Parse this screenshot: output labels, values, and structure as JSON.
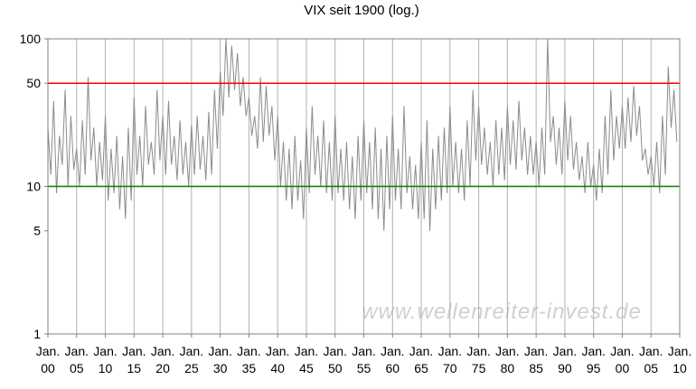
{
  "chart_data": {
    "type": "line",
    "title": "VIX seit 1900 (log.)",
    "watermark": "www.wellenreiter-invest.de",
    "log_y": true,
    "grid_x": true,
    "ylim": [
      1,
      100
    ],
    "yticks": [
      1,
      5,
      10,
      50,
      100
    ],
    "xlim": [
      1900,
      2010
    ],
    "xticks": [
      {
        "value": 1900,
        "label": "Jan. 00"
      },
      {
        "value": 1905,
        "label": "Jan. 05"
      },
      {
        "value": 1910,
        "label": "Jan. 10"
      },
      {
        "value": 1915,
        "label": "Jan. 15"
      },
      {
        "value": 1920,
        "label": "Jan. 20"
      },
      {
        "value": 1925,
        "label": "Jan. 25"
      },
      {
        "value": 1930,
        "label": "Jan. 30"
      },
      {
        "value": 1935,
        "label": "Jan. 35"
      },
      {
        "value": 1940,
        "label": "Jan. 40"
      },
      {
        "value": 1945,
        "label": "Jan. 45"
      },
      {
        "value": 1950,
        "label": "Jan. 50"
      },
      {
        "value": 1955,
        "label": "Jan. 55"
      },
      {
        "value": 1960,
        "label": "Jan. 60"
      },
      {
        "value": 1965,
        "label": "Jan. 65"
      },
      {
        "value": 1970,
        "label": "Jan. 70"
      },
      {
        "value": 1975,
        "label": "Jan. 75"
      },
      {
        "value": 1980,
        "label": "Jan. 80"
      },
      {
        "value": 1985,
        "label": "Jan. 85"
      },
      {
        "value": 1990,
        "label": "Jan. 90"
      },
      {
        "value": 1995,
        "label": "Jan. 95"
      },
      {
        "value": 2000,
        "label": "Jan. 00"
      },
      {
        "value": 2005,
        "label": "Jan. 05"
      },
      {
        "value": 2010,
        "label": "Jan. 10"
      }
    ],
    "hlines": [
      {
        "value": 50,
        "color": "#ff0000"
      },
      {
        "value": 10,
        "color": "#008000"
      }
    ],
    "x": [
      1900,
      1900.5,
      1901,
      1901.5,
      1902,
      1902.5,
      1903,
      1903.5,
      1904,
      1904.5,
      1905,
      1905.5,
      1906,
      1906.5,
      1907,
      1907.5,
      1908,
      1908.5,
      1909,
      1909.5,
      1910,
      1910.5,
      1911,
      1911.5,
      1912,
      1912.5,
      1913,
      1913.5,
      1914,
      1914.5,
      1915,
      1915.5,
      1916,
      1916.5,
      1917,
      1917.5,
      1918,
      1918.5,
      1919,
      1919.5,
      1920,
      1920.5,
      1921,
      1921.5,
      1922,
      1922.5,
      1923,
      1923.5,
      1924,
      1924.5,
      1925,
      1925.5,
      1926,
      1926.5,
      1927,
      1927.5,
      1928,
      1928.5,
      1929,
      1929.5,
      1930,
      1930.5,
      1931,
      1931.5,
      1932,
      1932.5,
      1933,
      1933.5,
      1934,
      1934.5,
      1935,
      1935.5,
      1936,
      1936.5,
      1937,
      1937.5,
      1938,
      1938.5,
      1939,
      1939.5,
      1940,
      1940.5,
      1941,
      1941.5,
      1942,
      1942.5,
      1943,
      1943.5,
      1944,
      1944.5,
      1945,
      1945.5,
      1946,
      1946.5,
      1947,
      1947.5,
      1948,
      1948.5,
      1949,
      1949.5,
      1950,
      1950.5,
      1951,
      1951.5,
      1952,
      1952.5,
      1953,
      1953.5,
      1954,
      1954.5,
      1955,
      1955.5,
      1956,
      1956.5,
      1957,
      1957.5,
      1958,
      1958.5,
      1959,
      1959.5,
      1960,
      1960.5,
      1961,
      1961.5,
      1962,
      1962.5,
      1963,
      1963.5,
      1964,
      1964.5,
      1965,
      1965.5,
      1966,
      1966.5,
      1967,
      1967.5,
      1968,
      1968.5,
      1969,
      1969.5,
      1970,
      1970.5,
      1971,
      1971.5,
      1972,
      1972.5,
      1973,
      1973.5,
      1974,
      1974.5,
      1975,
      1975.5,
      1976,
      1976.5,
      1977,
      1977.5,
      1978,
      1978.5,
      1979,
      1979.5,
      1980,
      1980.5,
      1981,
      1981.5,
      1982,
      1982.5,
      1983,
      1983.5,
      1984,
      1984.5,
      1985,
      1985.5,
      1986,
      1986.5,
      1987,
      1987.5,
      1988,
      1988.5,
      1989,
      1989.5,
      1990,
      1990.5,
      1991,
      1991.5,
      1992,
      1992.5,
      1993,
      1993.5,
      1994,
      1994.5,
      1995,
      1995.5,
      1996,
      1996.5,
      1997,
      1997.5,
      1998,
      1998.5,
      1999,
      1999.5,
      2000,
      2000.5,
      2001,
      2001.5,
      2002,
      2002.5,
      2003,
      2003.5,
      2004,
      2004.5,
      2005,
      2005.5,
      2006,
      2006.5,
      2007,
      2007.5,
      2008,
      2008.5,
      2009,
      2009.5
    ],
    "series": [
      {
        "color": "#8c8c8c",
        "values": [
          25,
          12,
          38,
          9,
          22,
          14,
          45,
          10,
          30,
          13,
          18,
          10,
          28,
          12,
          55,
          15,
          25,
          10,
          20,
          11,
          30,
          8,
          18,
          9,
          22,
          7,
          16,
          6,
          25,
          8,
          40,
          12,
          22,
          10,
          35,
          14,
          20,
          12,
          45,
          15,
          30,
          12,
          38,
          14,
          22,
          11,
          28,
          12,
          20,
          10,
          26,
          12,
          30,
          13,
          22,
          11,
          32,
          12,
          45,
          18,
          60,
          30,
          100,
          40,
          90,
          45,
          80,
          35,
          55,
          30,
          40,
          22,
          30,
          18,
          55,
          20,
          48,
          22,
          35,
          15,
          30,
          10,
          20,
          8,
          18,
          7,
          22,
          8,
          15,
          6,
          25,
          9,
          35,
          12,
          22,
          10,
          28,
          9,
          20,
          8,
          30,
          9,
          18,
          8,
          20,
          7,
          16,
          6,
          22,
          8,
          28,
          9,
          20,
          7,
          25,
          6,
          18,
          5,
          22,
          7,
          30,
          8,
          18,
          7,
          35,
          9,
          16,
          7,
          14,
          6,
          20,
          6,
          28,
          5,
          18,
          7,
          22,
          8,
          25,
          9,
          35,
          10,
          20,
          9,
          18,
          8,
          28,
          10,
          45,
          15,
          35,
          14,
          25,
          12,
          20,
          10,
          28,
          12,
          25,
          11,
          35,
          14,
          28,
          13,
          38,
          15,
          25,
          12,
          22,
          12,
          20,
          10,
          25,
          12,
          100,
          20,
          30,
          14,
          25,
          12,
          38,
          15,
          30,
          13,
          20,
          11,
          16,
          9,
          20,
          10,
          14,
          8,
          18,
          9,
          30,
          12,
          45,
          15,
          30,
          18,
          35,
          18,
          40,
          20,
          48,
          22,
          35,
          15,
          18,
          12,
          16,
          10,
          20,
          9,
          30,
          12,
          65,
          25,
          45,
          20
        ]
      }
    ]
  }
}
